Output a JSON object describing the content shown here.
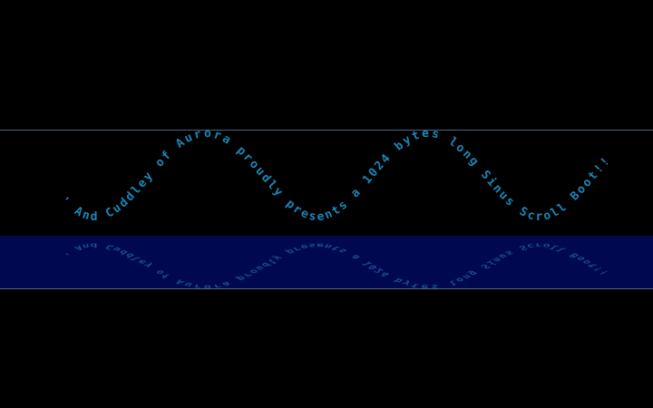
{
  "scroller": {
    "text": "' And Cuddley of Aurora proudly presents a 1024 bytes long Sinus Scroll Boot!!"
  }
}
